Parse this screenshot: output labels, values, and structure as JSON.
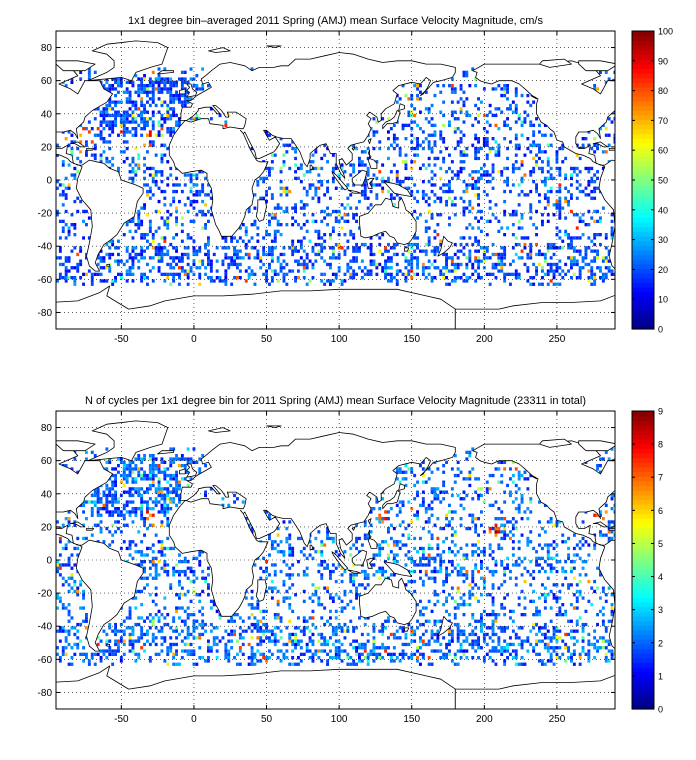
{
  "colors": {
    "colormap": "jet",
    "land_fill": "#ffffff",
    "coastline": "#000000",
    "grid": "#000000",
    "background": "#ffffff"
  },
  "chart_data": [
    {
      "type": "heatmap",
      "title": "1x1 degree bin–averaged 2011 Spring (AMJ) mean Surface Velocity Magnitude, cm/s",
      "xlabel": "",
      "ylabel": "",
      "xlim": [
        -95,
        290
      ],
      "ylim": [
        -90,
        90
      ],
      "x_ticks": [
        -50,
        0,
        50,
        100,
        150,
        200,
        250
      ],
      "y_ticks": [
        -80,
        -60,
        -40,
        -20,
        0,
        20,
        40,
        60,
        80
      ],
      "grid": true,
      "colorbar": {
        "min": 0,
        "max": 100,
        "ticks": [
          0,
          10,
          20,
          30,
          40,
          50,
          60,
          70,
          80,
          90,
          100
        ]
      },
      "typical_value": 20,
      "hotspots": [
        [
          -75,
          30,
          90
        ],
        [
          130,
          30,
          70
        ],
        [
          60,
          10,
          60
        ],
        [
          -30,
          25,
          95
        ],
        [
          280,
          25,
          95
        ]
      ]
    },
    {
      "type": "heatmap",
      "title": "N of cycles per 1x1 degree bin for 2011 Spring (AMJ) mean Surface Velocity Magnitude (23311 in total)",
      "xlabel": "",
      "ylabel": "",
      "xlim": [
        -95,
        290
      ],
      "ylim": [
        -90,
        90
      ],
      "x_ticks": [
        -50,
        0,
        50,
        100,
        150,
        200,
        250
      ],
      "y_ticks": [
        -80,
        -60,
        -40,
        -20,
        0,
        20,
        40,
        60,
        80
      ],
      "grid": true,
      "colorbar": {
        "min": 0,
        "max": 9,
        "ticks": [
          0,
          1,
          2,
          3,
          4,
          5,
          6,
          7,
          8,
          9
        ]
      },
      "typical_value": 2,
      "hotspots": [
        [
          60,
          25,
          9
        ],
        [
          130,
          30,
          8
        ],
        [
          205,
          20,
          9
        ],
        [
          -30,
          25,
          8
        ],
        [
          280,
          25,
          8
        ]
      ]
    }
  ]
}
